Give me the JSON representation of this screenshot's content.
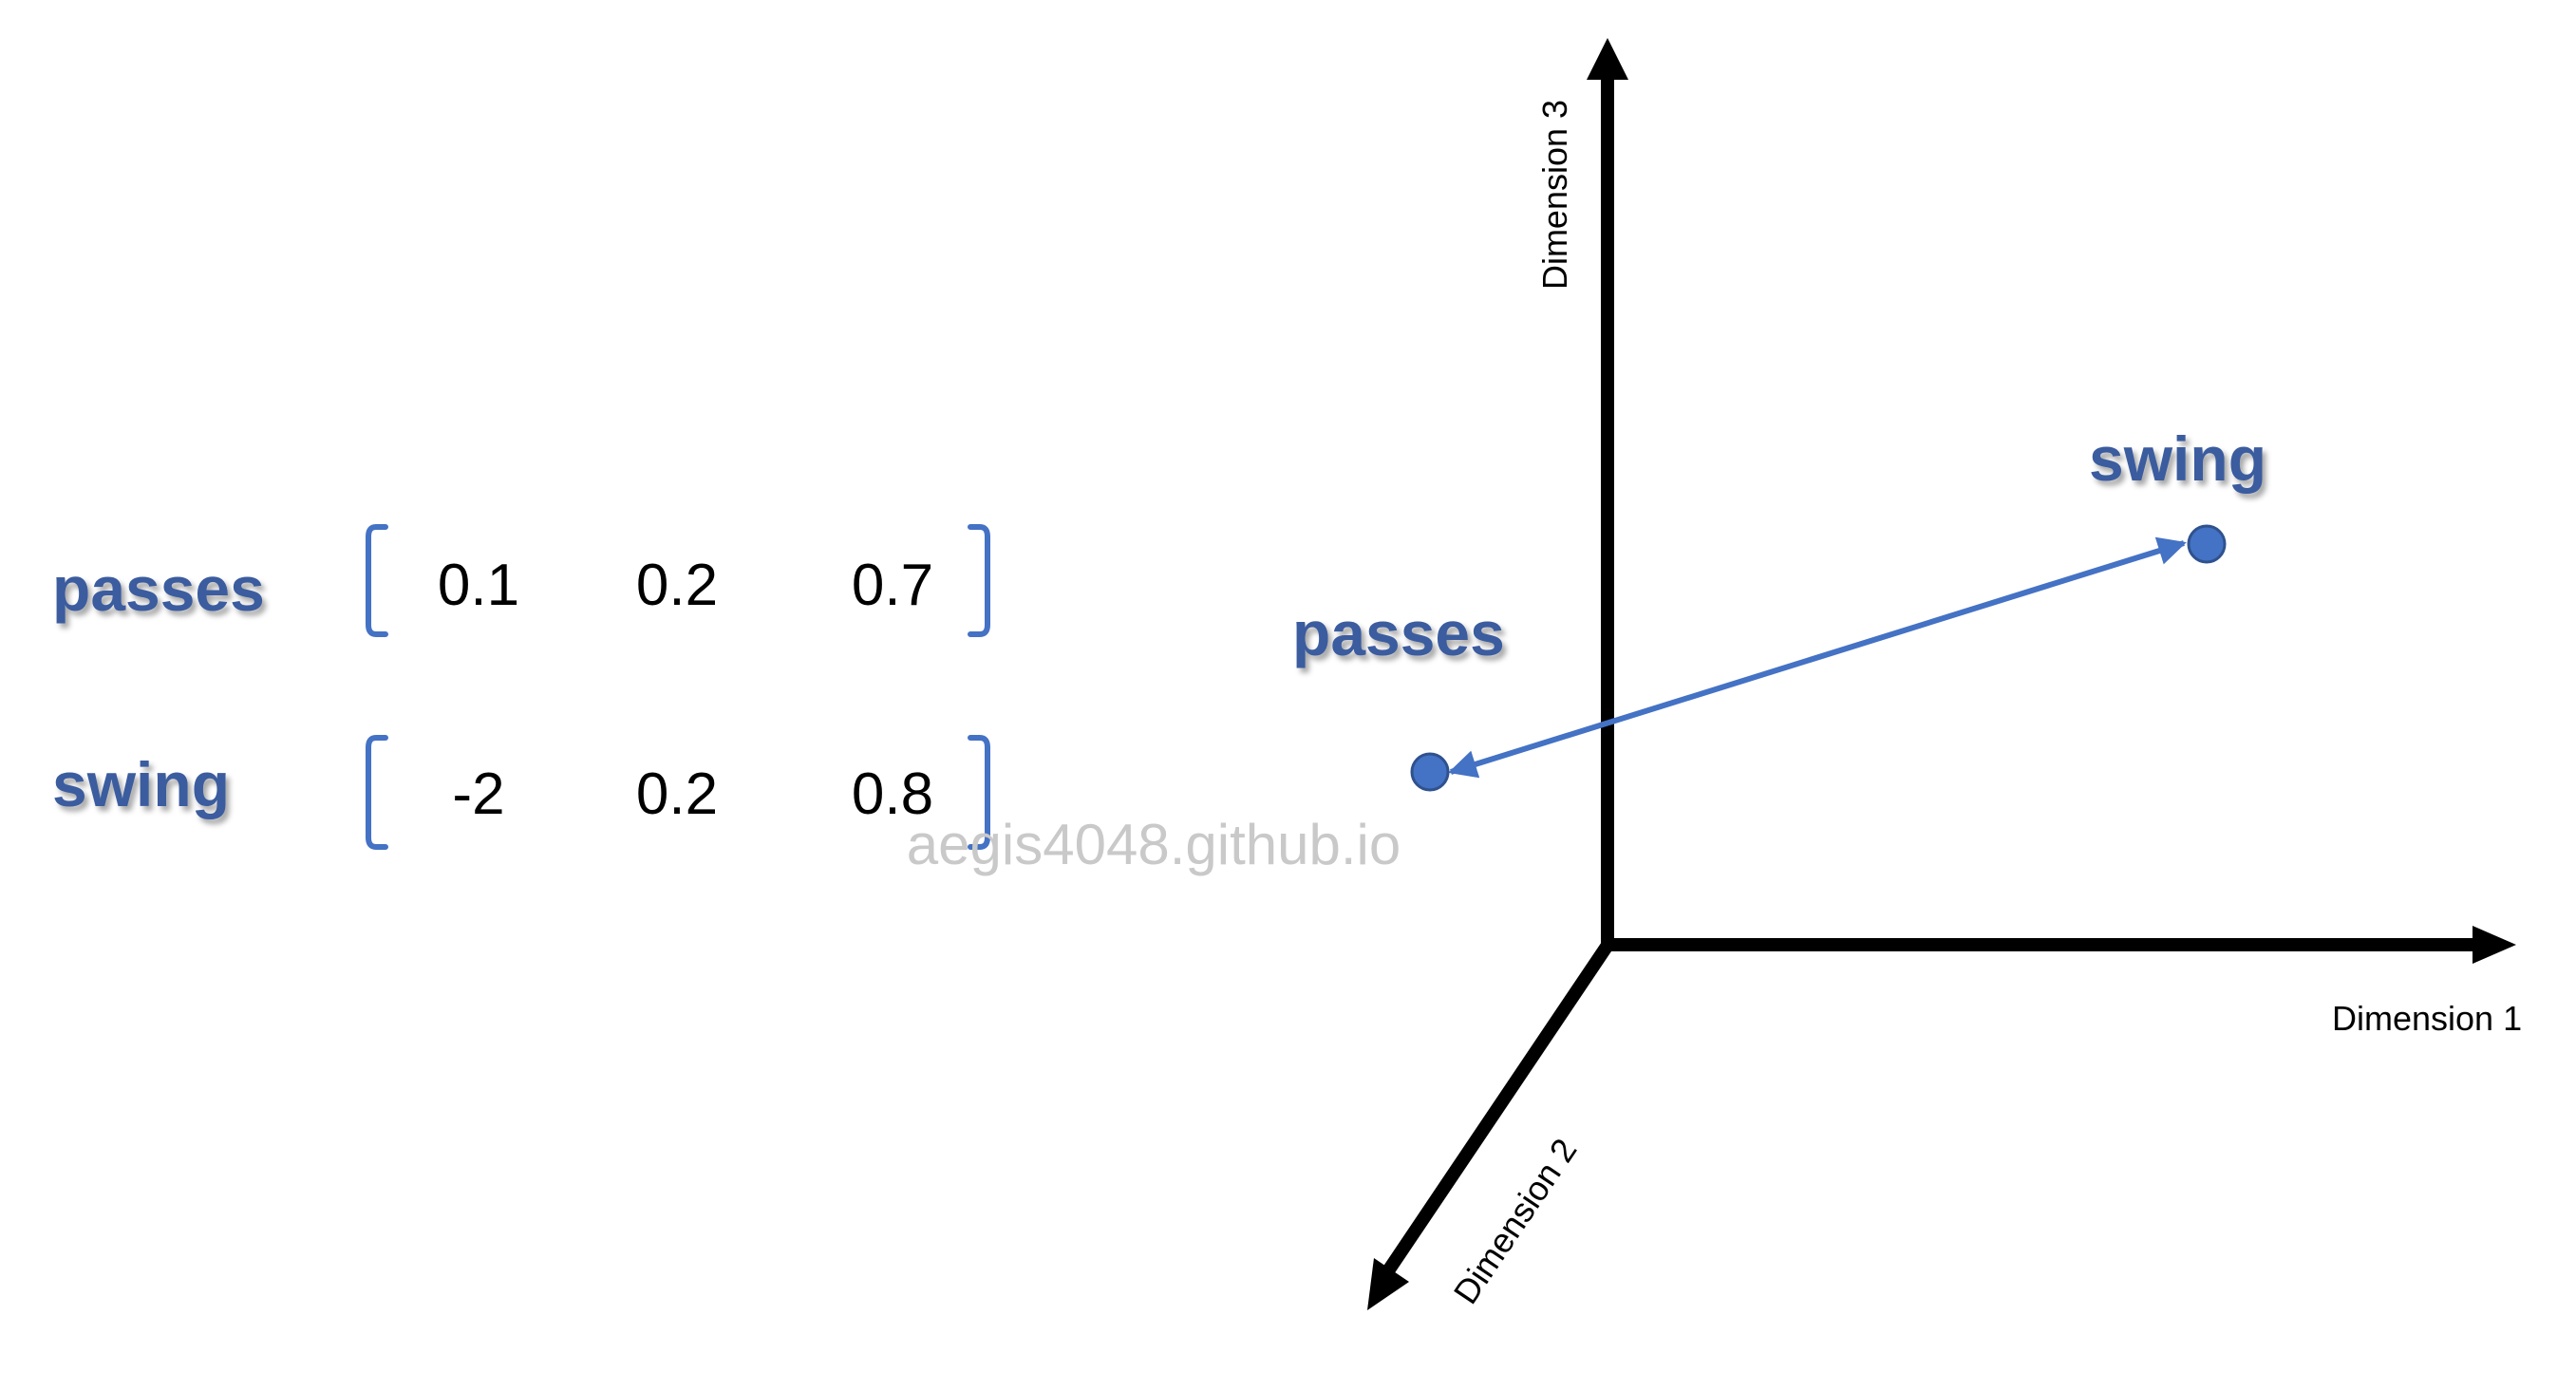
{
  "embeddings": [
    {
      "word": "passes",
      "vector": [
        "0.1",
        "0.2",
        "0.7"
      ]
    },
    {
      "word": "swing",
      "vector": [
        "-2",
        "0.2",
        "0.8"
      ]
    }
  ],
  "plot": {
    "axes": {
      "x": "Dimension 1",
      "y": "Dimension 2",
      "z": "Dimension 3"
    },
    "points": [
      {
        "label": "passes"
      },
      {
        "label": "swing"
      }
    ]
  },
  "watermark": "aegis4048.github.io",
  "colors": {
    "word": "#3a5c9e",
    "point": "#4472c4",
    "point_stroke": "#2f528f",
    "axis": "#000000",
    "watermark": "#c9c9c9"
  }
}
